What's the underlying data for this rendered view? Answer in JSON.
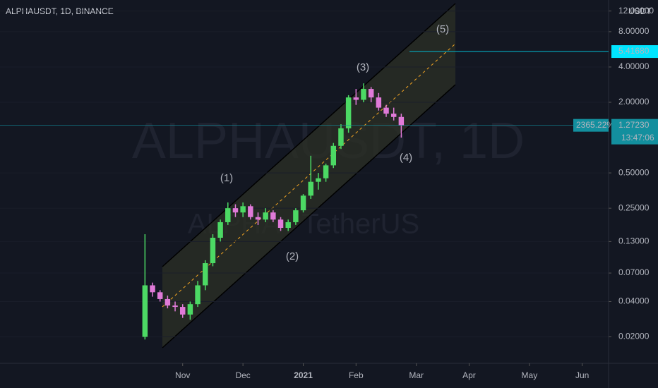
{
  "chart_data": {
    "type": "candlestick",
    "title": "ALPHAUSDT, 1D, BINANCE",
    "watermark": "ALPHAUSDT, 1D",
    "watermark_subtitle": "ALPHA / TetherUS",
    "unit": "USDT",
    "log_scale": true,
    "up_color": "#4cd964",
    "down_color": "#e07ad8",
    "categories": [
      null,
      null,
      null,
      null,
      null,
      "Nov",
      null,
      null,
      null,
      null,
      null,
      null,
      null,
      "Dec",
      null,
      null,
      null,
      null,
      null,
      null,
      null,
      "2021",
      null,
      null,
      null,
      null,
      null,
      null,
      "Feb",
      null,
      null,
      null,
      null,
      null,
      null,
      null,
      "Mar",
      null,
      null,
      null,
      null,
      null,
      null,
      "Apr",
      null,
      null,
      null,
      null,
      null,
      null,
      null,
      "May",
      null,
      null,
      null,
      null,
      null,
      null,
      "Jun",
      null,
      null,
      null
    ],
    "ohlc": [
      [
        0.02,
        0.15,
        0.019,
        0.055
      ],
      [
        0.055,
        0.058,
        0.044,
        0.048
      ],
      [
        0.048,
        0.05,
        0.04,
        0.042
      ],
      [
        0.042,
        0.045,
        0.035,
        0.037
      ],
      [
        0.037,
        0.04,
        0.033,
        0.036
      ],
      [
        0.036,
        0.038,
        0.029,
        0.031
      ],
      [
        0.031,
        0.04,
        0.028,
        0.038
      ],
      [
        0.038,
        0.06,
        0.036,
        0.055
      ],
      [
        0.055,
        0.09,
        0.05,
        0.085
      ],
      [
        0.085,
        0.15,
        0.08,
        0.14
      ],
      [
        0.14,
        0.2,
        0.13,
        0.19
      ],
      [
        0.19,
        0.28,
        0.18,
        0.25
      ],
      [
        0.25,
        0.27,
        0.21,
        0.23
      ],
      [
        0.23,
        0.28,
        0.21,
        0.26
      ],
      [
        0.26,
        0.27,
        0.2,
        0.21
      ],
      [
        0.21,
        0.23,
        0.18,
        0.2
      ],
      [
        0.2,
        0.25,
        0.19,
        0.23
      ],
      [
        0.23,
        0.24,
        0.19,
        0.2
      ],
      [
        0.2,
        0.21,
        0.16,
        0.17
      ],
      [
        0.17,
        0.2,
        0.16,
        0.19
      ],
      [
        0.19,
        0.25,
        0.18,
        0.24
      ],
      [
        0.24,
        0.33,
        0.23,
        0.32
      ],
      [
        0.32,
        0.7,
        0.3,
        0.42
      ],
      [
        0.42,
        0.5,
        0.36,
        0.45
      ],
      [
        0.45,
        0.6,
        0.42,
        0.58
      ],
      [
        0.58,
        0.9,
        0.55,
        0.85
      ],
      [
        0.85,
        1.3,
        0.8,
        1.2
      ],
      [
        1.2,
        2.3,
        1.1,
        2.2
      ],
      [
        2.2,
        2.6,
        1.9,
        2.1
      ],
      [
        2.1,
        2.9,
        2.0,
        2.6
      ],
      [
        2.6,
        2.7,
        2.0,
        2.2
      ],
      [
        2.2,
        2.4,
        1.7,
        1.8
      ],
      [
        1.8,
        1.9,
        1.5,
        1.6
      ],
      [
        1.6,
        1.8,
        1.4,
        1.5
      ],
      [
        1.5,
        1.6,
        1.0,
        1.2723
      ],
      null,
      null,
      null,
      null,
      null,
      null,
      null,
      null,
      null,
      null,
      null,
      null,
      null,
      null,
      null,
      null,
      null,
      null,
      null,
      null,
      null,
      null,
      null,
      null,
      null,
      null,
      null
    ],
    "ylim": [
      0.0119,
      14.9
    ],
    "yticks": [
      {
        "value": 12,
        "label": "12.00000"
      },
      {
        "value": 8,
        "label": "8.00000"
      },
      {
        "value": 4,
        "label": "4.00000"
      },
      {
        "value": 2,
        "label": "2.00000"
      },
      {
        "value": 0.5,
        "label": "0.50000"
      },
      {
        "value": 0.25,
        "label": "0.25000"
      },
      {
        "value": 0.13,
        "label": "0.13000"
      },
      {
        "value": 0.07,
        "label": "0.07000"
      },
      {
        "value": 0.04,
        "label": "0.04000"
      },
      {
        "value": 0.02,
        "label": "0.02000"
      }
    ],
    "target_price": {
      "value": 5.4168,
      "label": "5.41680"
    },
    "current_price": {
      "value": 1.2723,
      "label": "1.27230"
    },
    "change_label": "2365.22%",
    "countdown": "13:47:06",
    "annotations": [
      "(1)",
      "(2)",
      "(3)",
      "(4)",
      "(5)"
    ]
  }
}
